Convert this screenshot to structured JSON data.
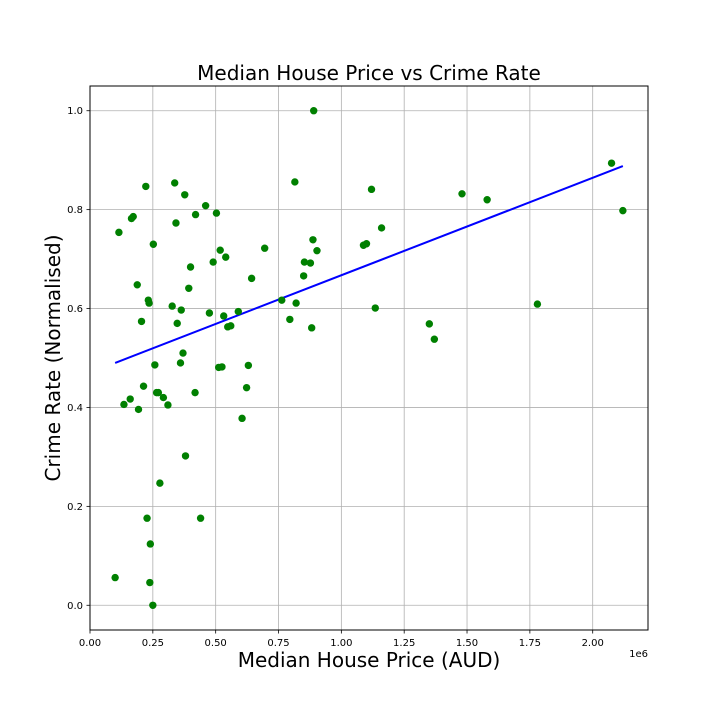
{
  "chart_data": {
    "type": "scatter",
    "title": "Median House Price vs Crime Rate",
    "xlabel": "Median House Price (AUD)",
    "ylabel": "Crime Rate (Normalised)",
    "x_offset_label": "1e6",
    "xlim": [
      0.0,
      2.22
    ],
    "ylim": [
      -0.05,
      1.05
    ],
    "xticks": [
      0.0,
      0.25,
      0.5,
      0.75,
      1.0,
      1.25,
      1.5,
      1.75,
      2.0
    ],
    "xtick_labels": [
      "0.00",
      "0.25",
      "0.50",
      "0.75",
      "1.00",
      "1.25",
      "1.50",
      "1.75",
      "2.00"
    ],
    "yticks": [
      0.0,
      0.2,
      0.4,
      0.6,
      0.8,
      1.0
    ],
    "ytick_labels": [
      "0.0",
      "0.2",
      "0.4",
      "0.6",
      "0.8",
      "1.0"
    ],
    "grid": true,
    "point_color": "#008000",
    "line_color": "#0000ff",
    "series": [
      {
        "values": [
          [
            0.1,
            0.056
          ],
          [
            0.115,
            0.754
          ],
          [
            0.135,
            0.406
          ],
          [
            0.16,
            0.417
          ],
          [
            0.165,
            0.782
          ],
          [
            0.172,
            0.786
          ],
          [
            0.188,
            0.648
          ],
          [
            0.193,
            0.396
          ],
          [
            0.205,
            0.574
          ],
          [
            0.213,
            0.443
          ],
          [
            0.222,
            0.847
          ],
          [
            0.227,
            0.176
          ],
          [
            0.232,
            0.617
          ],
          [
            0.235,
            0.611
          ],
          [
            0.238,
            0.046
          ],
          [
            0.24,
            0.124
          ],
          [
            0.25,
            0.0
          ],
          [
            0.252,
            0.73
          ],
          [
            0.258,
            0.486
          ],
          [
            0.265,
            0.43
          ],
          [
            0.272,
            0.43
          ],
          [
            0.278,
            0.247
          ],
          [
            0.292,
            0.42
          ],
          [
            0.31,
            0.405
          ],
          [
            0.327,
            0.605
          ],
          [
            0.337,
            0.854
          ],
          [
            0.342,
            0.773
          ],
          [
            0.347,
            0.57
          ],
          [
            0.36,
            0.49
          ],
          [
            0.363,
            0.597
          ],
          [
            0.37,
            0.51
          ],
          [
            0.377,
            0.83
          ],
          [
            0.38,
            0.302
          ],
          [
            0.393,
            0.641
          ],
          [
            0.4,
            0.684
          ],
          [
            0.418,
            0.43
          ],
          [
            0.42,
            0.79
          ],
          [
            0.44,
            0.176
          ],
          [
            0.46,
            0.808
          ],
          [
            0.475,
            0.591
          ],
          [
            0.49,
            0.694
          ],
          [
            0.503,
            0.793
          ],
          [
            0.512,
            0.481
          ],
          [
            0.518,
            0.718
          ],
          [
            0.525,
            0.482
          ],
          [
            0.532,
            0.585
          ],
          [
            0.54,
            0.704
          ],
          [
            0.548,
            0.563
          ],
          [
            0.56,
            0.565
          ],
          [
            0.59,
            0.594
          ],
          [
            0.605,
            0.378
          ],
          [
            0.623,
            0.44
          ],
          [
            0.63,
            0.485
          ],
          [
            0.643,
            0.661
          ],
          [
            0.695,
            0.722
          ],
          [
            0.763,
            0.617
          ],
          [
            0.795,
            0.578
          ],
          [
            0.815,
            0.856
          ],
          [
            0.82,
            0.611
          ],
          [
            0.85,
            0.666
          ],
          [
            0.853,
            0.694
          ],
          [
            0.877,
            0.692
          ],
          [
            0.882,
            0.561
          ],
          [
            0.887,
            0.739
          ],
          [
            0.89,
            1.0
          ],
          [
            0.903,
            0.717
          ],
          [
            1.088,
            0.728
          ],
          [
            1.1,
            0.731
          ],
          [
            1.12,
            0.841
          ],
          [
            1.135,
            0.601
          ],
          [
            1.16,
            0.763
          ],
          [
            1.35,
            0.569
          ],
          [
            1.37,
            0.538
          ],
          [
            1.48,
            0.832
          ],
          [
            1.58,
            0.82
          ],
          [
            1.78,
            0.609
          ],
          [
            2.075,
            0.894
          ],
          [
            2.12,
            0.798
          ]
        ]
      }
    ],
    "trendline": {
      "x": [
        0.1,
        2.12
      ],
      "y": [
        0.49,
        0.888
      ]
    }
  }
}
